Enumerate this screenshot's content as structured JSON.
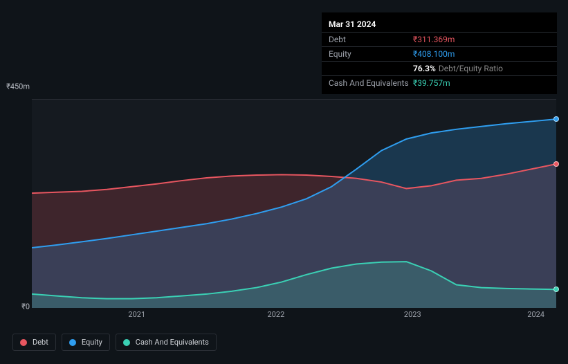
{
  "tooltip": {
    "date": "Mar 31 2024",
    "rows": [
      {
        "label": "Debt",
        "value": "₹311.369m",
        "color": "#e85660"
      },
      {
        "label": "Equity",
        "value": "₹408.100m",
        "color": "#2f9ef0"
      },
      {
        "label": "",
        "pct": "76.3%",
        "ratio": "Debt/Equity Ratio"
      },
      {
        "label": "Cash And Equivalents",
        "value": "₹39.757m",
        "color": "#3ad1b5"
      }
    ]
  },
  "chart": {
    "type": "area",
    "background_color": "#151a20",
    "page_background": "#0f1419",
    "grid_color": "#2a2e35",
    "ylim": [
      0,
      450
    ],
    "ytop_label": "₹450m",
    "ybot_label": "₹0",
    "x_categories": [
      "2021",
      "2022",
      "2023",
      "2024"
    ],
    "x_positions_pct": [
      20,
      46.5,
      72.5,
      96
    ],
    "series": [
      {
        "name": "Debt",
        "color": "#e85660",
        "fill": "rgba(232,86,96,0.20)",
        "values": [
          248,
          250,
          252,
          256,
          262,
          268,
          275,
          281,
          285,
          287,
          288,
          287,
          284,
          280,
          272,
          258,
          264,
          276,
          280,
          289,
          300,
          311
        ],
        "marker_end": 311.369
      },
      {
        "name": "Equity",
        "color": "#2f9ef0",
        "fill": "rgba(47,158,240,0.22)",
        "values": [
          130,
          136,
          143,
          150,
          158,
          166,
          174,
          182,
          192,
          204,
          218,
          236,
          262,
          300,
          340,
          365,
          378,
          386,
          392,
          398,
          403,
          408
        ],
        "marker_end": 408.1
      },
      {
        "name": "Cash And Equivalents",
        "color": "#3ad1b5",
        "fill": "rgba(58,209,181,0.20)",
        "values": [
          30,
          26,
          22,
          20,
          20,
          22,
          26,
          30,
          36,
          44,
          56,
          72,
          86,
          95,
          99,
          100,
          80,
          50,
          44,
          42,
          41,
          40
        ],
        "marker_end": 39.757
      }
    ],
    "line_width": 2
  },
  "legend": {
    "items": [
      {
        "label": "Debt",
        "color": "#e85660"
      },
      {
        "label": "Equity",
        "color": "#2f9ef0"
      },
      {
        "label": "Cash And Equivalents",
        "color": "#3ad1b5"
      }
    ]
  }
}
